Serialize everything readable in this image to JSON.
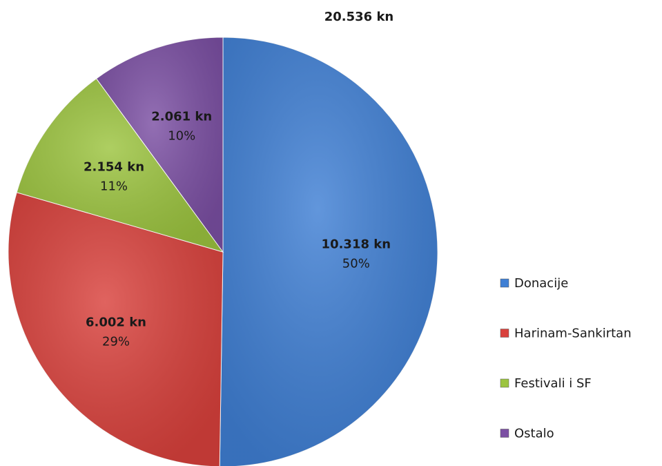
{
  "chart_data": {
    "type": "pie",
    "title": "20.536 kn",
    "categories": [
      "Donacije",
      "Harinam-Sankirtan",
      "Festivali i SF",
      "Ostalo"
    ],
    "values": [
      10318,
      6002,
      2154,
      2061
    ],
    "value_labels": [
      "10.318 kn",
      "6.002 kn",
      "2.154 kn",
      "2.061 kn"
    ],
    "percent_labels": [
      "50%",
      "29%",
      "11%",
      "10%"
    ],
    "colors": [
      "#3f7fd4",
      "#d9413c",
      "#9cc43f",
      "#7b4fa3"
    ],
    "legend": "right"
  }
}
